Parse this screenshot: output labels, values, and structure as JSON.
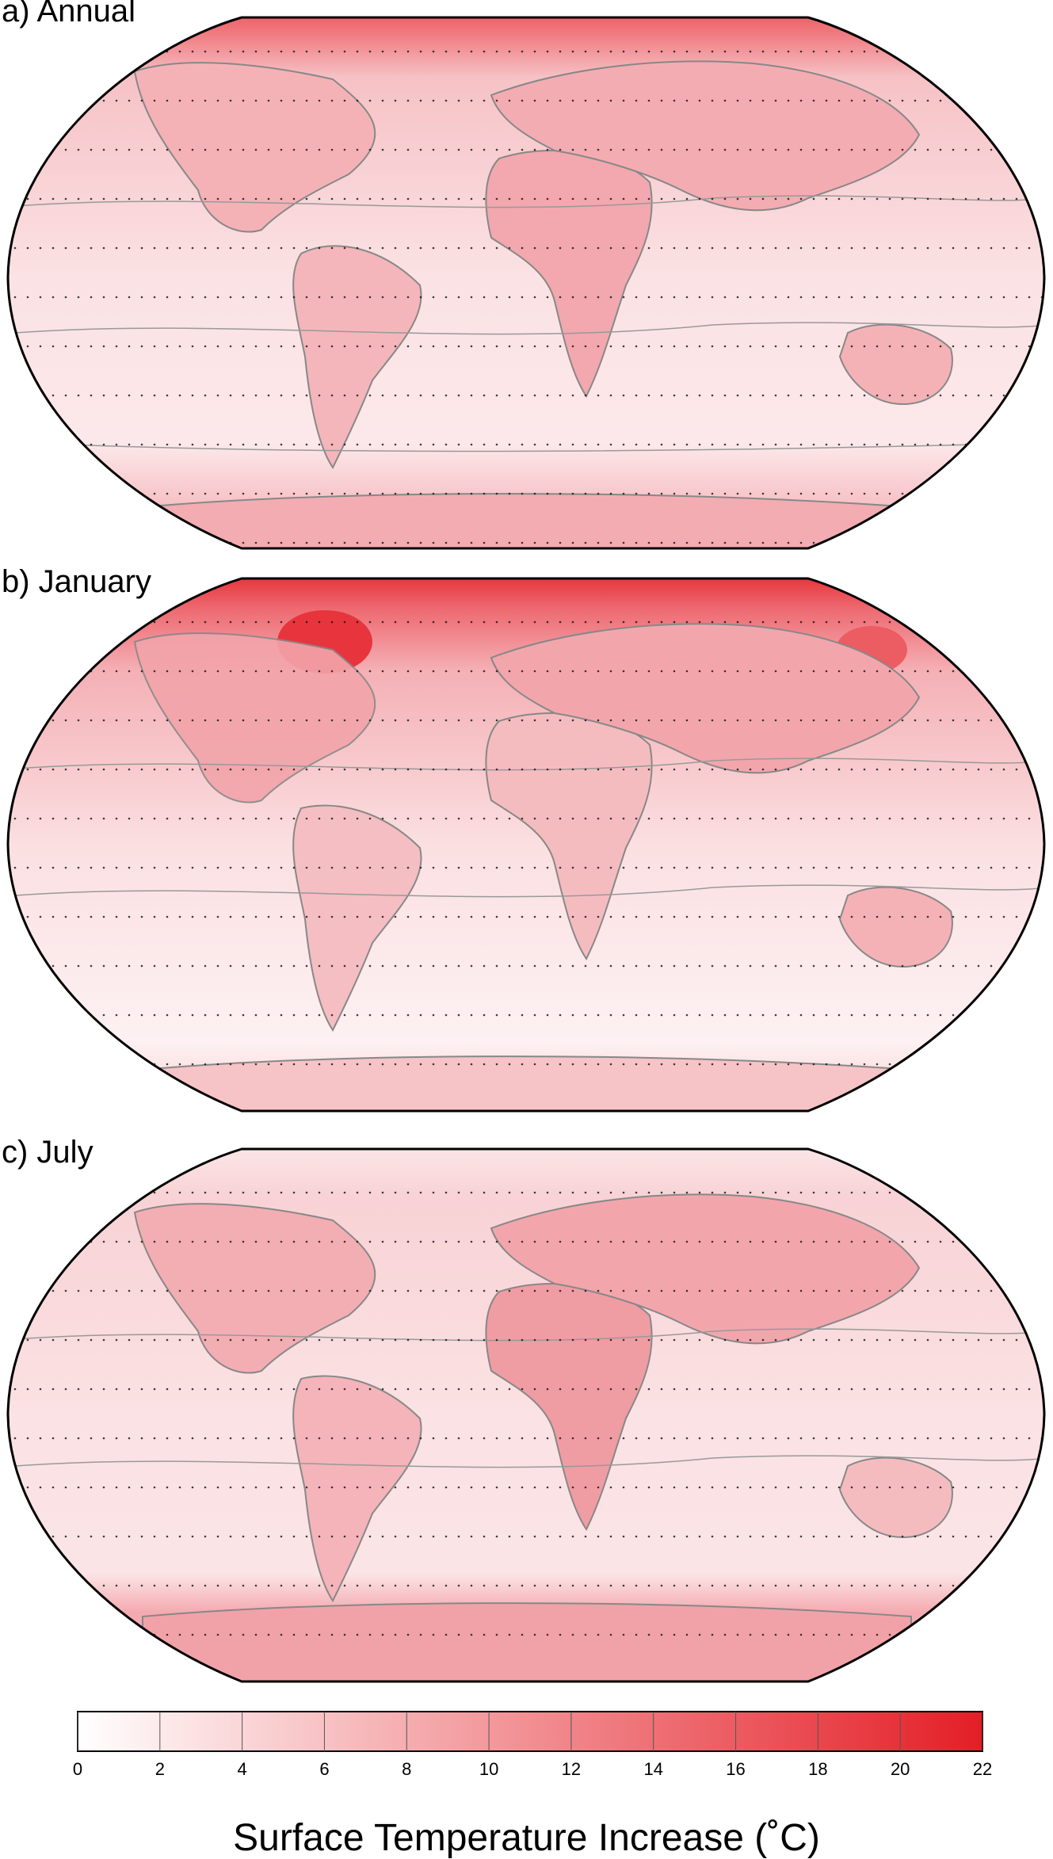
{
  "panels": [
    {
      "label": "a) Annual",
      "season": "annual"
    },
    {
      "label": "b) January",
      "season": "january"
    },
    {
      "label": "c) July",
      "season": "july"
    }
  ],
  "colorbar": {
    "title": "Surface Temperature Increase (˚C)",
    "ticks": [
      "0",
      "2",
      "4",
      "6",
      "8",
      "10",
      "12",
      "14",
      "16",
      "18",
      "20",
      "22"
    ],
    "min": 0,
    "max": 22,
    "color_low": "#ffffff",
    "color_high": "#e41e26"
  },
  "map_style": {
    "projection": "robinson",
    "contour_color": "#8c8c8c",
    "coast_color": "#888888",
    "stipple": true
  }
}
